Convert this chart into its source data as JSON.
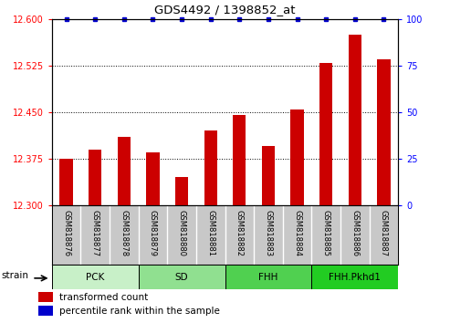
{
  "title": "GDS4492 / 1398852_at",
  "samples": [
    "GSM818876",
    "GSM818877",
    "GSM818878",
    "GSM818879",
    "GSM818880",
    "GSM818881",
    "GSM818882",
    "GSM818883",
    "GSM818884",
    "GSM818885",
    "GSM818886",
    "GSM818887"
  ],
  "transformed_counts": [
    12.375,
    12.39,
    12.41,
    12.385,
    12.345,
    12.42,
    12.445,
    12.395,
    12.455,
    12.53,
    12.575,
    12.535
  ],
  "groups": [
    {
      "label": "PCK",
      "start": 0,
      "end": 3,
      "color": "#c8f0c8"
    },
    {
      "label": "SD",
      "start": 3,
      "end": 6,
      "color": "#90e090"
    },
    {
      "label": "FHH",
      "start": 6,
      "end": 9,
      "color": "#50d050"
    },
    {
      "label": "FHH.Pkhd1",
      "start": 9,
      "end": 12,
      "color": "#22cc22"
    }
  ],
  "ylim_left": [
    12.3,
    12.6
  ],
  "yticks_left": [
    12.3,
    12.375,
    12.45,
    12.525,
    12.6
  ],
  "ylim_right": [
    0,
    100
  ],
  "yticks_right": [
    0,
    25,
    50,
    75,
    100
  ],
  "bar_color": "#cc0000",
  "dot_color": "#0000cc",
  "tick_label_area_color": "#c8c8c8",
  "group_label": "strain",
  "bar_width": 0.45
}
